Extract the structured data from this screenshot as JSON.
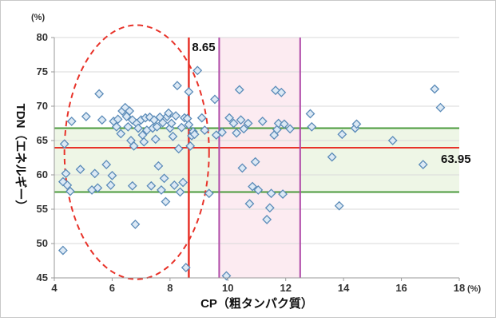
{
  "chart_data": {
    "type": "scatter",
    "xlabel": "CP（粗タンパク質）",
    "ylabel": "TDN（エネルギー）",
    "x_unit": "(%)",
    "y_unit": "(%)",
    "xlim": [
      4,
      18
    ],
    "ylim": [
      45,
      80
    ],
    "x_ticks": [
      4,
      6,
      8,
      10,
      12,
      14,
      16,
      18
    ],
    "y_ticks": [
      45,
      50,
      55,
      60,
      65,
      70,
      75,
      80
    ],
    "grid": "horizontal",
    "points": [
      [
        4.3,
        49.0
      ],
      [
        4.3,
        59.0
      ],
      [
        4.35,
        64.5
      ],
      [
        4.4,
        60.2
      ],
      [
        4.45,
        58.5
      ],
      [
        4.55,
        57.6
      ],
      [
        4.6,
        67.8
      ],
      [
        4.9,
        60.8
      ],
      [
        5.1,
        68.5
      ],
      [
        5.3,
        57.8
      ],
      [
        5.4,
        60.2
      ],
      [
        5.5,
        58.1
      ],
      [
        5.55,
        71.8
      ],
      [
        5.65,
        68.0
      ],
      [
        5.8,
        61.5
      ],
      [
        5.95,
        58.5
      ],
      [
        6.0,
        59.9
      ],
      [
        6.05,
        67.8
      ],
      [
        6.15,
        67.0
      ],
      [
        6.2,
        68.1
      ],
      [
        6.3,
        66.0
      ],
      [
        6.35,
        69.3
      ],
      [
        6.45,
        69.8
      ],
      [
        6.5,
        68.5
      ],
      [
        6.55,
        67.0
      ],
      [
        6.6,
        69.3
      ],
      [
        6.65,
        65.0
      ],
      [
        6.7,
        68.0
      ],
      [
        6.7,
        58.4
      ],
      [
        6.75,
        64.2
      ],
      [
        6.8,
        52.8
      ],
      [
        6.85,
        67.5
      ],
      [
        6.9,
        66.8
      ],
      [
        7.0,
        68.0
      ],
      [
        7.05,
        65.8
      ],
      [
        7.1,
        64.8
      ],
      [
        7.15,
        68.3
      ],
      [
        7.2,
        66.5
      ],
      [
        7.3,
        68.4
      ],
      [
        7.35,
        58.4
      ],
      [
        7.4,
        66.8
      ],
      [
        7.45,
        68.0
      ],
      [
        7.5,
        65.2
      ],
      [
        7.55,
        67.0
      ],
      [
        7.6,
        61.3
      ],
      [
        7.65,
        68.4
      ],
      [
        7.7,
        57.8
      ],
      [
        7.75,
        67.6
      ],
      [
        7.8,
        59.5
      ],
      [
        7.85,
        56.1
      ],
      [
        7.9,
        68.5
      ],
      [
        7.95,
        69.0
      ],
      [
        8.0,
        66.8
      ],
      [
        8.05,
        67.5
      ],
      [
        8.1,
        65.6
      ],
      [
        8.15,
        58.5
      ],
      [
        8.2,
        68.6
      ],
      [
        8.25,
        73.0
      ],
      [
        8.3,
        63.8
      ],
      [
        8.35,
        57.5
      ],
      [
        8.4,
        66.9
      ],
      [
        8.45,
        58.9
      ],
      [
        8.5,
        68.3
      ],
      [
        8.55,
        46.5
      ],
      [
        8.6,
        68.2
      ],
      [
        8.65,
        72.1
      ],
      [
        8.65,
        67.3
      ],
      [
        8.7,
        64.2
      ],
      [
        8.75,
        65.7
      ],
      [
        8.8,
        66.3
      ],
      [
        8.85,
        65.9
      ],
      [
        8.95,
        75.2
      ],
      [
        9.1,
        68.3
      ],
      [
        9.2,
        66.5
      ],
      [
        9.35,
        57.3
      ],
      [
        9.55,
        71.0
      ],
      [
        9.6,
        65.8
      ],
      [
        9.8,
        66.2
      ],
      [
        9.95,
        45.3
      ],
      [
        10.05,
        68.3
      ],
      [
        10.2,
        67.5
      ],
      [
        10.3,
        66.1
      ],
      [
        10.4,
        72.4
      ],
      [
        10.45,
        68.0
      ],
      [
        10.5,
        61.0
      ],
      [
        10.55,
        66.7
      ],
      [
        10.7,
        67.5
      ],
      [
        10.75,
        55.8
      ],
      [
        10.85,
        58.3
      ],
      [
        10.95,
        61.9
      ],
      [
        11.05,
        57.8
      ],
      [
        11.2,
        67.8
      ],
      [
        11.35,
        53.5
      ],
      [
        11.45,
        55.2
      ],
      [
        11.5,
        57.3
      ],
      [
        11.6,
        65.8
      ],
      [
        11.65,
        72.3
      ],
      [
        11.7,
        66.6
      ],
      [
        11.75,
        67.5
      ],
      [
        11.85,
        72.0
      ],
      [
        11.9,
        57.2
      ],
      [
        11.95,
        67.4
      ],
      [
        12.15,
        66.7
      ],
      [
        12.85,
        68.9
      ],
      [
        12.9,
        67.0
      ],
      [
        13.6,
        62.6
      ],
      [
        13.85,
        55.5
      ],
      [
        13.95,
        65.9
      ],
      [
        14.4,
        66.8
      ],
      [
        14.45,
        67.4
      ],
      [
        15.7,
        65.0
      ],
      [
        16.75,
        61.5
      ],
      [
        17.15,
        72.5
      ],
      [
        17.35,
        69.8
      ]
    ],
    "reference_lines": {
      "vertical_red": 8.65,
      "horizontal_red": 63.95,
      "horizontal_green": [
        57.5,
        66.8
      ],
      "vertical_magenta": [
        9.7,
        12.5
      ]
    },
    "annotations": {
      "x_ref_label": "8.65",
      "y_ref_label": "63.95"
    },
    "highlight_ellipse": {
      "cx": 6.85,
      "cy": 63.3,
      "rx": 2.5,
      "ry": 18.5
    },
    "bands": {
      "green_y": [
        57.5,
        66.8
      ],
      "pink_x": [
        9.7,
        12.5
      ]
    },
    "colors": {
      "marker_stroke": "#5b8bb8",
      "marker_fill": "#dce9f5",
      "red_line": "#e8332a",
      "green_line": "#4b9a3c",
      "magenta_line": "#b04aa8",
      "green_band": "#eef6e6",
      "pink_band": "#fbe8ee",
      "ellipse": "#e8332a",
      "grid": "#d9d9d9",
      "axis": "#9a9a9a"
    }
  }
}
